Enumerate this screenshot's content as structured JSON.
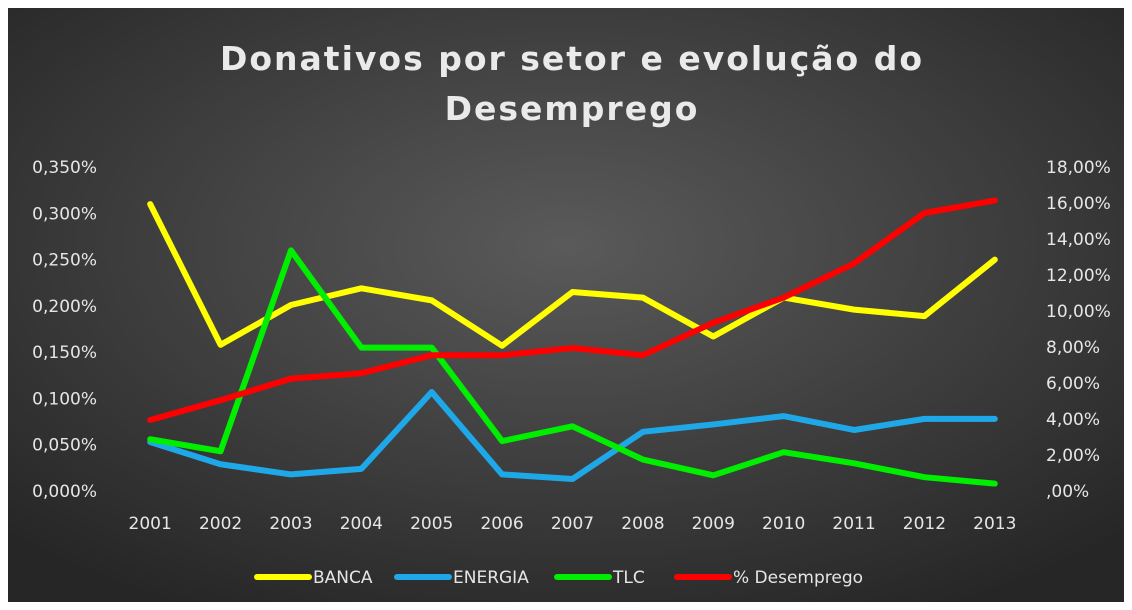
{
  "chart_data": {
    "type": "line",
    "title": "Donativos por setor e evolução do Desemprego",
    "categories": [
      "2001",
      "2002",
      "2003",
      "2004",
      "2005",
      "2006",
      "2007",
      "2008",
      "2009",
      "2010",
      "2011",
      "2012",
      "2013"
    ],
    "series": [
      {
        "name": "BANCA",
        "color": "#ffff00",
        "values": [
          0.311,
          0.159,
          0.202,
          0.22,
          0.207,
          0.158,
          0.216,
          0.21,
          0.168,
          0.21,
          0.197,
          0.19,
          0.251
        ]
      },
      {
        "name": "ENERGIA",
        "color": "#1fa8e8",
        "values": [
          0.054,
          0.03,
          0.019,
          0.025,
          0.108,
          0.019,
          0.014,
          0.065,
          0.073,
          0.082,
          0.067,
          0.079,
          0.079
        ]
      },
      {
        "name": "TLC",
        "color": "#00ee00",
        "values": [
          0.057,
          0.044,
          0.261,
          0.156,
          0.156,
          0.055,
          0.071,
          0.035,
          0.018,
          0.043,
          0.031,
          0.016,
          0.009
        ]
      },
      {
        "name": "% Desemprego",
        "color": "#ff0000",
        "axis": "y2",
        "values": [
          4.0,
          5.1,
          6.3,
          6.6,
          7.6,
          7.6,
          8.0,
          7.6,
          9.4,
          10.8,
          12.7,
          15.5,
          16.2
        ]
      }
    ],
    "ylim": [
      0,
      0.35
    ],
    "yticks": [
      {
        "value": 0,
        "label": "0,000%"
      },
      {
        "value": 0.05,
        "label": "0,050%"
      },
      {
        "value": 0.1,
        "label": "0,100%"
      },
      {
        "value": 0.15,
        "label": "0,150%"
      },
      {
        "value": 0.2,
        "label": "0,200%"
      },
      {
        "value": 0.25,
        "label": "0,250%"
      },
      {
        "value": 0.3,
        "label": "0,300%"
      },
      {
        "value": 0.35,
        "label": "0,350%"
      }
    ],
    "y2lim": [
      0,
      18
    ],
    "y2ticks": [
      {
        "value": 0,
        "label": ",00%"
      },
      {
        "value": 2,
        "label": "2,00%"
      },
      {
        "value": 4,
        "label": "4,00%"
      },
      {
        "value": 6,
        "label": "6,00%"
      },
      {
        "value": 8,
        "label": "8,00%"
      },
      {
        "value": 10,
        "label": "10,00%"
      },
      {
        "value": 12,
        "label": "12,00%"
      },
      {
        "value": 14,
        "label": "14,00%"
      },
      {
        "value": 16,
        "label": "16,00%"
      },
      {
        "value": 18,
        "label": "18,00%"
      }
    ],
    "legend": "bottom",
    "grid": false
  }
}
